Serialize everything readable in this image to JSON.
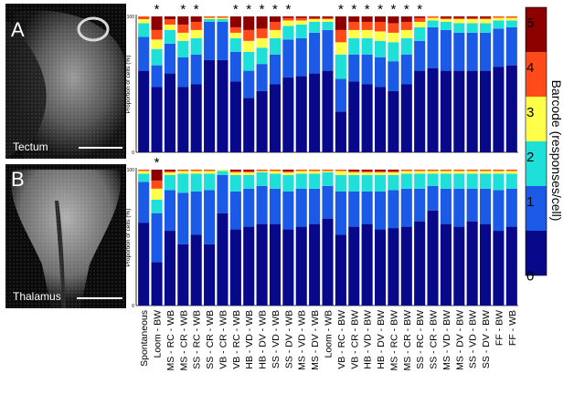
{
  "panels": [
    {
      "letter": "A",
      "label": "Tectum"
    },
    {
      "letter": "B",
      "label": "Thalamus"
    }
  ],
  "colors": {
    "level_0": "#08088a",
    "level_1": "#1a5ae6",
    "level_2": "#1ee0d8",
    "level_3": "#ffff4a",
    "level_4": "#ff4a1a",
    "level_5": "#8c0000"
  },
  "chart_data": [
    {
      "type": "bar",
      "stacked": true,
      "panel": "A",
      "ylabel": "Proportion of cells (%)",
      "ylim": [
        0,
        100
      ],
      "yticks": [
        "0",
        "100"
      ],
      "categories": [
        "Spontaneous",
        "Loom - BW",
        "MS - RC - WB",
        "MS - CR - WB",
        "SS - RC - WB",
        "SS - CR - WB",
        "VB - CR - WB",
        "VB - RC - WB",
        "HB - VD - WB",
        "HB - DV - WB",
        "SS - VD - WB",
        "SS - DV - WB",
        "MS - VD - WB",
        "MS - DV - WB",
        "Loom - WB",
        "VB - RC - BW",
        "VB - CR - BW",
        "HB - VD - BW",
        "HB - DV - BW",
        "MS - RC - BW",
        "MS - CR - BW",
        "SS - RC - BW",
        "SS - CR - BW",
        "MS - VD - BW",
        "MS - DV - BW",
        "SS - VD - BW",
        "SS - DV - BW",
        "FF - BW",
        "FF - WB"
      ],
      "significant": [
        false,
        true,
        false,
        true,
        true,
        false,
        false,
        true,
        true,
        true,
        true,
        true,
        false,
        false,
        false,
        true,
        true,
        true,
        true,
        true,
        true,
        true,
        false,
        false,
        false,
        false,
        false,
        false,
        false
      ],
      "series": [
        {
          "name": "0",
          "values": [
            60,
            48,
            58,
            48,
            50,
            68,
            68,
            52,
            40,
            45,
            50,
            55,
            56,
            58,
            60,
            30,
            52,
            50,
            48,
            45,
            50,
            60,
            62,
            60,
            60,
            60,
            60,
            63,
            64
          ]
        },
        {
          "name": "1",
          "values": [
            25,
            16,
            22,
            22,
            22,
            28,
            28,
            22,
            20,
            20,
            22,
            28,
            28,
            30,
            30,
            24,
            20,
            22,
            22,
            22,
            22,
            22,
            30,
            30,
            28,
            28,
            28,
            28,
            28
          ]
        },
        {
          "name": "2",
          "values": [
            10,
            12,
            10,
            12,
            12,
            2,
            2,
            10,
            14,
            12,
            12,
            10,
            10,
            8,
            6,
            18,
            12,
            12,
            12,
            14,
            12,
            10,
            5,
            6,
            7,
            7,
            7,
            6,
            5
          ]
        },
        {
          "name": "3",
          "values": [
            3,
            7,
            4,
            6,
            6,
            1,
            1,
            4,
            8,
            7,
            6,
            4,
            3,
            2,
            2,
            9,
            6,
            6,
            7,
            7,
            6,
            4,
            2,
            2,
            3,
            3,
            3,
            2,
            2
          ]
        },
        {
          "name": "4",
          "values": [
            2,
            7,
            4,
            6,
            6,
            1,
            1,
            4,
            8,
            7,
            6,
            2,
            2,
            1,
            1,
            9,
            6,
            6,
            7,
            7,
            6,
            3,
            1,
            1,
            1,
            1,
            1,
            1,
            1
          ]
        },
        {
          "name": "5",
          "values": [
            0,
            10,
            2,
            6,
            4,
            0,
            0,
            8,
            10,
            9,
            4,
            1,
            1,
            1,
            1,
            10,
            4,
            4,
            4,
            5,
            4,
            1,
            0,
            1,
            1,
            1,
            1,
            0,
            0
          ]
        }
      ]
    },
    {
      "type": "bar",
      "stacked": true,
      "panel": "B",
      "ylabel": "Proportion of cells (%)",
      "ylim": [
        0,
        100
      ],
      "yticks": [
        "0",
        "100"
      ],
      "categories": [
        "Spontaneous",
        "Loom - BW",
        "MS - RC - WB",
        "MS - CR - WB",
        "SS - RC - WB",
        "SS - CR - WB",
        "VB - CR - WB",
        "VB - RC - WB",
        "HB - VD - WB",
        "HB - DV - WB",
        "SS - VD - WB",
        "SS - DV - WB",
        "MS - VD - WB",
        "MS - DV - WB",
        "Loom - WB",
        "VB - RC - BW",
        "VB - CR - BW",
        "HB - VD - BW",
        "HB - DV - BW",
        "MS - RC - BW",
        "MS - CR - BW",
        "SS - RC - BW",
        "SS - CR - BW",
        "MS - VD - BW",
        "MS - DV - BW",
        "SS - VD - BW",
        "SS - DV - BW",
        "FF - BW",
        "FF - WB"
      ],
      "significant": [
        false,
        true,
        false,
        false,
        false,
        false,
        false,
        false,
        false,
        false,
        false,
        false,
        false,
        false,
        false,
        false,
        false,
        false,
        false,
        false,
        false,
        false,
        false,
        false,
        false,
        false,
        false,
        false,
        false
      ],
      "series": [
        {
          "name": "0",
          "values": [
            61,
            32,
            55,
            45,
            52,
            45,
            68,
            56,
            58,
            60,
            60,
            56,
            58,
            60,
            64,
            52,
            58,
            60,
            56,
            57,
            58,
            62,
            70,
            60,
            58,
            62,
            60,
            55,
            58
          ]
        },
        {
          "name": "1",
          "values": [
            30,
            36,
            30,
            38,
            32,
            40,
            28,
            28,
            28,
            28,
            26,
            28,
            28,
            26,
            24,
            32,
            26,
            24,
            28,
            28,
            28,
            24,
            18,
            26,
            28,
            24,
            26,
            30,
            28
          ]
        },
        {
          "name": "2",
          "values": [
            6,
            10,
            11,
            14,
            13,
            12,
            3,
            12,
            10,
            10,
            11,
            12,
            11,
            11,
            10,
            12,
            12,
            12,
            12,
            11,
            11,
            11,
            9,
            11,
            11,
            11,
            11,
            12,
            11
          ]
        },
        {
          "name": "3",
          "values": [
            2,
            8,
            2,
            2,
            2,
            2,
            1,
            2,
            2,
            1,
            2,
            2,
            2,
            2,
            1,
            3,
            2,
            2,
            2,
            2,
            2,
            2,
            2,
            2,
            2,
            2,
            2,
            2,
            2
          ]
        },
        {
          "name": "4",
          "values": [
            1,
            6,
            1,
            1,
            1,
            1,
            0,
            1,
            1,
            1,
            1,
            1,
            1,
            1,
            1,
            1,
            1,
            1,
            1,
            1,
            1,
            1,
            1,
            1,
            1,
            1,
            1,
            1,
            1
          ]
        },
        {
          "name": "5",
          "values": [
            0,
            8,
            1,
            0,
            0,
            0,
            0,
            1,
            1,
            0,
            0,
            1,
            0,
            0,
            0,
            0,
            1,
            1,
            1,
            1,
            0,
            0,
            0,
            0,
            0,
            0,
            0,
            0,
            0
          ]
        }
      ]
    }
  ],
  "colorbar": {
    "title": "Barcode (responses/cell)",
    "ticks": [
      "0",
      "1",
      "2",
      "3",
      "4",
      "5"
    ]
  }
}
